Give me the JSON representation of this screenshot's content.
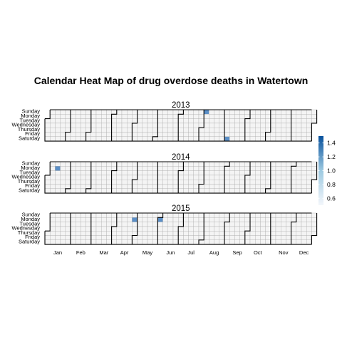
{
  "chart_data": {
    "type": "heatmap",
    "title": "Calendar Heat Map of drug overdose deaths in Watertown",
    "weekdays": [
      "Sunday",
      "Monday",
      "Tuesday",
      "Wednesday",
      "Thursday",
      "Friday",
      "Saturday"
    ],
    "months": [
      "Jan",
      "Feb",
      "Mar",
      "Apr",
      "May",
      "Jun",
      "Jul",
      "Aug",
      "Sep",
      "Oct",
      "Nov",
      "Dec"
    ],
    "years": [
      {
        "year": "2013",
        "events": [
          {
            "date": "2013-08-04",
            "value": 1
          },
          {
            "date": "2013-09-07",
            "value": 1
          }
        ]
      },
      {
        "year": "2014",
        "events": [
          {
            "date": "2014-01-13",
            "value": 1
          }
        ]
      },
      {
        "year": "2015",
        "events": [
          {
            "date": "2015-04-27",
            "value": 1
          },
          {
            "date": "2015-06-01",
            "value": 1
          }
        ]
      }
    ],
    "legend": {
      "ticks": [
        "1.4",
        "1.2",
        "1.0",
        "0.8",
        "0.6"
      ],
      "range": [
        0.5,
        1.5
      ],
      "placement": "right"
    },
    "colors": {
      "empty": "#f4f4f4",
      "cell_border": "#aaaaaa",
      "month_border": "#000000",
      "low": "#f3f6fb",
      "high": "#08519c",
      "fill": "#5b8fc7"
    }
  }
}
